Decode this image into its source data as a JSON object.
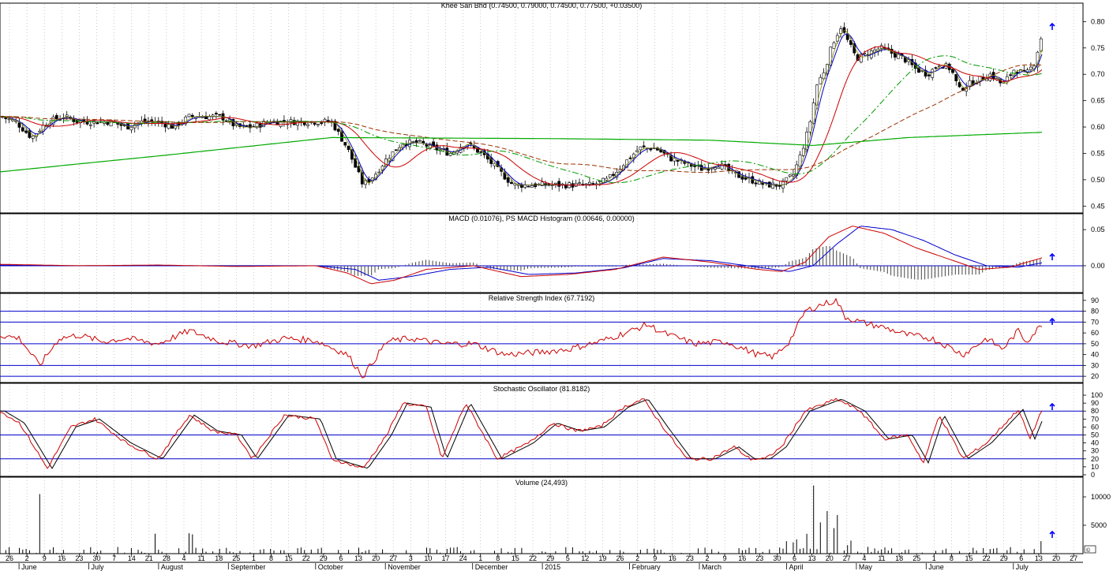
{
  "chart_data": [
    {
      "type": "candlestick",
      "title": "Khee San Bhd (0.74500, 0.79000, 0.74500, 0.77500, +0.03500)",
      "ylim": [
        0.44,
        0.82
      ],
      "yticks": [
        "0.80",
        "0.75",
        "0.70",
        "0.65",
        "0.60",
        "0.55",
        "0.50",
        "0.45"
      ],
      "ytick_values": [
        0.8,
        0.75,
        0.7,
        0.65,
        0.6,
        0.55,
        0.5,
        0.45
      ],
      "grid": "vertical dotted",
      "close_anchors": [
        [
          0,
          0.62
        ],
        [
          20,
          0.61
        ],
        [
          40,
          0.58
        ],
        [
          60,
          0.61
        ],
        [
          80,
          0.62
        ],
        [
          100,
          0.61
        ],
        [
          120,
          0.61
        ],
        [
          140,
          0.61
        ],
        [
          160,
          0.6
        ],
        [
          180,
          0.61
        ],
        [
          200,
          0.61
        ],
        [
          220,
          0.6
        ],
        [
          240,
          0.62
        ],
        [
          260,
          0.62
        ],
        [
          280,
          0.62
        ],
        [
          300,
          0.6
        ],
        [
          320,
          0.6
        ],
        [
          340,
          0.61
        ],
        [
          360,
          0.61
        ],
        [
          380,
          0.61
        ],
        [
          400,
          0.61
        ],
        [
          420,
          0.61
        ],
        [
          440,
          0.56
        ],
        [
          460,
          0.49
        ],
        [
          475,
          0.51
        ],
        [
          490,
          0.54
        ],
        [
          510,
          0.57
        ],
        [
          530,
          0.57
        ],
        [
          550,
          0.56
        ],
        [
          570,
          0.55
        ],
        [
          590,
          0.57
        ],
        [
          610,
          0.55
        ],
        [
          630,
          0.52
        ],
        [
          650,
          0.49
        ],
        [
          670,
          0.49
        ],
        [
          690,
          0.49
        ],
        [
          710,
          0.49
        ],
        [
          730,
          0.49
        ],
        [
          750,
          0.49
        ],
        [
          770,
          0.5
        ],
        [
          790,
          0.53
        ],
        [
          810,
          0.56
        ],
        [
          830,
          0.56
        ],
        [
          850,
          0.54
        ],
        [
          870,
          0.53
        ],
        [
          890,
          0.52
        ],
        [
          910,
          0.53
        ],
        [
          930,
          0.51
        ],
        [
          950,
          0.5
        ],
        [
          970,
          0.49
        ],
        [
          990,
          0.49
        ],
        [
          1005,
          0.51
        ],
        [
          1015,
          0.55
        ],
        [
          1025,
          0.6
        ],
        [
          1035,
          0.68
        ],
        [
          1045,
          0.71
        ],
        [
          1055,
          0.76
        ],
        [
          1065,
          0.79
        ],
        [
          1075,
          0.76
        ],
        [
          1085,
          0.73
        ],
        [
          1100,
          0.74
        ],
        [
          1115,
          0.75
        ],
        [
          1130,
          0.74
        ],
        [
          1145,
          0.73
        ],
        [
          1160,
          0.71
        ],
        [
          1175,
          0.7
        ],
        [
          1190,
          0.72
        ],
        [
          1205,
          0.71
        ],
        [
          1215,
          0.67
        ],
        [
          1225,
          0.68
        ],
        [
          1240,
          0.69
        ],
        [
          1255,
          0.7
        ],
        [
          1270,
          0.68
        ],
        [
          1285,
          0.71
        ],
        [
          1300,
          0.7
        ],
        [
          1310,
          0.72
        ],
        [
          1320,
          0.775
        ]
      ]
    },
    {
      "type": "line",
      "title": "MACD (0.01076), PS MACD Histogram (0.00646, 0.00000)",
      "ylim": [
        -0.035,
        0.06
      ],
      "yticks": [
        "0.05",
        "0.00"
      ],
      "ytick_values": [
        0.05,
        0.0
      ],
      "macd_anchors": [
        [
          0,
          0.002
        ],
        [
          100,
          0.0
        ],
        [
          200,
          0.001
        ],
        [
          300,
          -0.001
        ],
        [
          400,
          0.0
        ],
        [
          440,
          -0.01
        ],
        [
          470,
          -0.025
        ],
        [
          500,
          -0.02
        ],
        [
          540,
          -0.005
        ],
        [
          600,
          0.0
        ],
        [
          660,
          -0.015
        ],
        [
          720,
          -0.012
        ],
        [
          780,
          -0.005
        ],
        [
          840,
          0.012
        ],
        [
          900,
          0.005
        ],
        [
          960,
          -0.005
        ],
        [
          990,
          -0.008
        ],
        [
          1020,
          0.005
        ],
        [
          1050,
          0.04
        ],
        [
          1080,
          0.055
        ],
        [
          1120,
          0.045
        ],
        [
          1160,
          0.025
        ],
        [
          1200,
          0.01
        ],
        [
          1240,
          -0.005
        ],
        [
          1280,
          -0.002
        ],
        [
          1320,
          0.011
        ]
      ],
      "signal_anchors": [
        [
          0,
          0.001
        ],
        [
          100,
          0.0
        ],
        [
          200,
          0.0
        ],
        [
          300,
          0.0
        ],
        [
          400,
          0.0
        ],
        [
          450,
          -0.005
        ],
        [
          480,
          -0.02
        ],
        [
          520,
          -0.015
        ],
        [
          570,
          -0.005
        ],
        [
          620,
          -0.002
        ],
        [
          670,
          -0.012
        ],
        [
          730,
          -0.01
        ],
        [
          790,
          -0.003
        ],
        [
          840,
          0.01
        ],
        [
          900,
          0.007
        ],
        [
          960,
          -0.002
        ],
        [
          1000,
          -0.008
        ],
        [
          1030,
          0.0
        ],
        [
          1060,
          0.03
        ],
        [
          1090,
          0.055
        ],
        [
          1130,
          0.05
        ],
        [
          1170,
          0.035
        ],
        [
          1210,
          0.015
        ],
        [
          1250,
          0.0
        ],
        [
          1290,
          -0.002
        ],
        [
          1320,
          0.004
        ]
      ]
    },
    {
      "type": "line",
      "title": "Relative Strength Index (67.7192)",
      "ylim": [
        15,
        95
      ],
      "yticks": [
        "90",
        "80",
        "70",
        "60",
        "50",
        "40",
        "30",
        "20"
      ],
      "ytick_values": [
        90,
        80,
        70,
        60,
        50,
        40,
        30,
        20
      ],
      "hlines": [
        80,
        70,
        50,
        30,
        20
      ],
      "anchors": [
        [
          0,
          58
        ],
        [
          25,
          55
        ],
        [
          50,
          30
        ],
        [
          75,
          55
        ],
        [
          100,
          58
        ],
        [
          130,
          52
        ],
        [
          160,
          55
        ],
        [
          200,
          50
        ],
        [
          240,
          62
        ],
        [
          280,
          52
        ],
        [
          320,
          48
        ],
        [
          360,
          55
        ],
        [
          400,
          53
        ],
        [
          440,
          40
        ],
        [
          460,
          20
        ],
        [
          490,
          52
        ],
        [
          520,
          55
        ],
        [
          560,
          50
        ],
        [
          600,
          50
        ],
        [
          640,
          40
        ],
        [
          680,
          42
        ],
        [
          720,
          45
        ],
        [
          760,
          52
        ],
        [
          800,
          62
        ],
        [
          820,
          68
        ],
        [
          840,
          60
        ],
        [
          880,
          50
        ],
        [
          920,
          52
        ],
        [
          960,
          40
        ],
        [
          980,
          38
        ],
        [
          1000,
          52
        ],
        [
          1020,
          80
        ],
        [
          1040,
          86
        ],
        [
          1060,
          90
        ],
        [
          1070,
          75
        ],
        [
          1090,
          70
        ],
        [
          1120,
          65
        ],
        [
          1150,
          58
        ],
        [
          1180,
          55
        ],
        [
          1200,
          48
        ],
        [
          1220,
          40
        ],
        [
          1250,
          55
        ],
        [
          1270,
          45
        ],
        [
          1290,
          62
        ],
        [
          1300,
          52
        ],
        [
          1320,
          67.7
        ]
      ]
    },
    {
      "type": "line",
      "title": "Stochastic Oscillator (81.8182)",
      "ylim": [
        0,
        105
      ],
      "yticks": [
        "100",
        "90",
        "80",
        "70",
        "60",
        "50",
        "40",
        "30",
        "20",
        "10",
        "0"
      ],
      "ytick_values": [
        100,
        90,
        80,
        70,
        60,
        50,
        40,
        30,
        20,
        10,
        0
      ],
      "hlines": [
        80,
        50,
        20
      ],
      "anchors": [
        [
          0,
          80
        ],
        [
          25,
          65
        ],
        [
          60,
          8
        ],
        [
          90,
          60
        ],
        [
          120,
          70
        ],
        [
          160,
          40
        ],
        [
          200,
          20
        ],
        [
          240,
          75
        ],
        [
          270,
          55
        ],
        [
          300,
          50
        ],
        [
          320,
          20
        ],
        [
          360,
          75
        ],
        [
          400,
          70
        ],
        [
          420,
          20
        ],
        [
          460,
          8
        ],
        [
          490,
          50
        ],
        [
          510,
          90
        ],
        [
          540,
          85
        ],
        [
          560,
          20
        ],
        [
          590,
          90
        ],
        [
          630,
          20
        ],
        [
          670,
          40
        ],
        [
          700,
          65
        ],
        [
          730,
          55
        ],
        [
          760,
          60
        ],
        [
          790,
          85
        ],
        [
          815,
          95
        ],
        [
          840,
          60
        ],
        [
          870,
          20
        ],
        [
          900,
          20
        ],
        [
          930,
          35
        ],
        [
          950,
          20
        ],
        [
          970,
          20
        ],
        [
          990,
          35
        ],
        [
          1020,
          80
        ],
        [
          1060,
          95
        ],
        [
          1090,
          80
        ],
        [
          1120,
          45
        ],
        [
          1150,
          50
        ],
        [
          1170,
          15
        ],
        [
          1190,
          75
        ],
        [
          1220,
          20
        ],
        [
          1250,
          40
        ],
        [
          1290,
          82
        ],
        [
          1305,
          45
        ],
        [
          1320,
          82
        ]
      ]
    },
    {
      "type": "bar",
      "title": "Volume (24,493)",
      "ylim": [
        0,
        12500
      ],
      "yticks": [
        "10000",
        "5000"
      ],
      "ytick_values": [
        10000,
        5000
      ],
      "spikes": [
        [
          49,
          10500
        ],
        [
          196,
          3500
        ],
        [
          240,
          3600
        ],
        [
          244,
          3400
        ],
        [
          1030,
          12000
        ],
        [
          1048,
          7500
        ],
        [
          1062,
          6800
        ],
        [
          1040,
          5500
        ],
        [
          1055,
          4500
        ],
        [
          1020,
          3500
        ],
        [
          1010,
          2500
        ],
        [
          996,
          2200
        ],
        [
          1076,
          2300
        ],
        [
          1005,
          2000
        ],
        [
          1072,
          1500
        ],
        [
          1100,
          1200
        ],
        [
          1120,
          1100
        ],
        [
          1318,
          2200
        ]
      ],
      "baseline_volume": 600
    }
  ],
  "x_axis": {
    "day_ticks": [
      "26",
      "2",
      "9",
      "16",
      "23",
      "30",
      "7",
      "14",
      "21",
      "28",
      "4",
      "11",
      "18",
      "25",
      "1",
      "8",
      "15",
      "22",
      "29",
      "6",
      "13",
      "20",
      "27",
      "3",
      "10",
      "17",
      "24",
      "1",
      "8",
      "15",
      "22",
      "29",
      "5",
      "12",
      "19",
      "26",
      "2",
      "9",
      "16",
      "23",
      "2",
      "9",
      "16",
      "23",
      "30",
      "6",
      "13",
      "20",
      "27",
      "4",
      "11",
      "18",
      "25",
      "1",
      "8",
      "15",
      "22",
      "29",
      "6",
      "13",
      "20",
      "27"
    ],
    "months": [
      "June",
      "July",
      "August",
      "September",
      "October",
      "November",
      "December",
      "2015",
      "February",
      "March",
      "April",
      "May",
      "June",
      "July"
    ]
  },
  "colors": {
    "ma_green": "#00aa00",
    "ma_red": "#cc0000",
    "ma_blue": "#0000cc",
    "ma_darkred": "#993300",
    "ma_dashgreen": "#009900",
    "ref_lines": "#0000cc",
    "arrow": "#0000ff",
    "candle": "#000000"
  },
  "corner_badge": "©"
}
